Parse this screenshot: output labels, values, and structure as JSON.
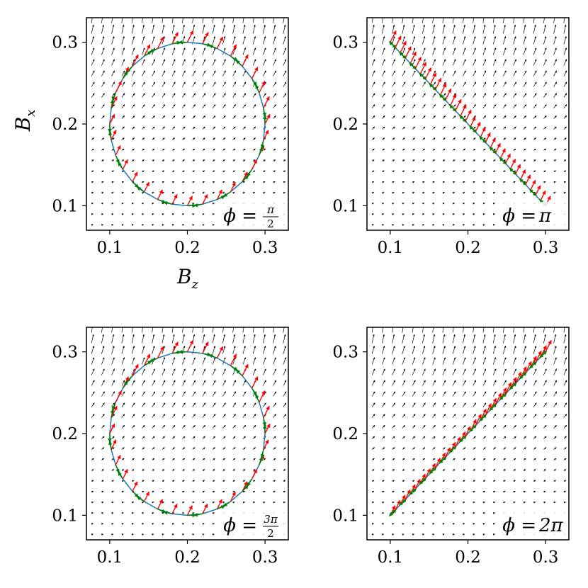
{
  "chart_data": [
    {
      "type": "quiver",
      "panel": "top-left",
      "annotation": {
        "lhs": "ϕ =",
        "numerator": "π",
        "denominator": "2"
      },
      "xlabel": "B_z",
      "ylabel": "B_x",
      "xlim": [
        0.07,
        0.33
      ],
      "ylim": [
        0.07,
        0.33
      ],
      "xticks": [
        0.1,
        0.2,
        0.3
      ],
      "yticks": [
        0.1,
        0.2,
        0.3
      ],
      "tick_labels": {
        "x": [
          "0.1",
          "0.2",
          "0.3"
        ],
        "y": [
          "0.1",
          "0.2",
          "0.3"
        ]
      },
      "curve": {
        "shape": "circle",
        "center": [
          0.2,
          0.2
        ],
        "radius": 0.1
      },
      "vector_colors": {
        "field": "#000000",
        "red": "#ff0000",
        "green": "#008000",
        "curve": "#1f77b4"
      }
    },
    {
      "type": "quiver",
      "panel": "top-right",
      "annotation": {
        "lhs": "ϕ =",
        "rhs": "π"
      },
      "xlim": [
        0.07,
        0.33
      ],
      "ylim": [
        0.07,
        0.33
      ],
      "xticks": [
        0.1,
        0.2,
        0.3
      ],
      "yticks": [
        0.1,
        0.2,
        0.3
      ],
      "tick_labels": {
        "x": [
          "0.1",
          "0.2",
          "0.3"
        ],
        "y": [
          "0.1",
          "0.2",
          "0.3"
        ]
      },
      "curve": {
        "shape": "line",
        "from": [
          0.1,
          0.3
        ],
        "to": [
          0.3,
          0.1
        ]
      },
      "vector_colors": {
        "field": "#000000",
        "red": "#ff0000",
        "green": "#008000",
        "curve": "#1f77b4"
      }
    },
    {
      "type": "quiver",
      "panel": "bottom-left",
      "annotation": {
        "lhs": "ϕ =",
        "numerator": "3π",
        "denominator": "2"
      },
      "xlim": [
        0.07,
        0.33
      ],
      "ylim": [
        0.07,
        0.33
      ],
      "xticks": [
        0.1,
        0.2,
        0.3
      ],
      "yticks": [
        0.1,
        0.2,
        0.3
      ],
      "tick_labels": {
        "x": [
          "0.1",
          "0.2",
          "0.3"
        ],
        "y": [
          "0.1",
          "0.2",
          "0.3"
        ]
      },
      "curve": {
        "shape": "circle",
        "center": [
          0.2,
          0.2
        ],
        "radius": 0.1
      },
      "vector_colors": {
        "field": "#000000",
        "red": "#ff0000",
        "green": "#008000",
        "curve": "#1f77b4"
      }
    },
    {
      "type": "quiver",
      "panel": "bottom-right",
      "annotation": {
        "lhs": "ϕ =",
        "rhs": "2π"
      },
      "xlim": [
        0.07,
        0.33
      ],
      "ylim": [
        0.07,
        0.33
      ],
      "xticks": [
        0.1,
        0.2,
        0.3
      ],
      "yticks": [
        0.1,
        0.2,
        0.3
      ],
      "tick_labels": {
        "x": [
          "0.1",
          "0.2",
          "0.3"
        ],
        "y": [
          "0.1",
          "0.2",
          "0.3"
        ]
      },
      "curve": {
        "shape": "line",
        "from": [
          0.1,
          0.1
        ],
        "to": [
          0.3,
          0.3
        ]
      },
      "vector_colors": {
        "field": "#000000",
        "red": "#ff0000",
        "green": "#008000",
        "curve": "#1f77b4"
      }
    }
  ]
}
